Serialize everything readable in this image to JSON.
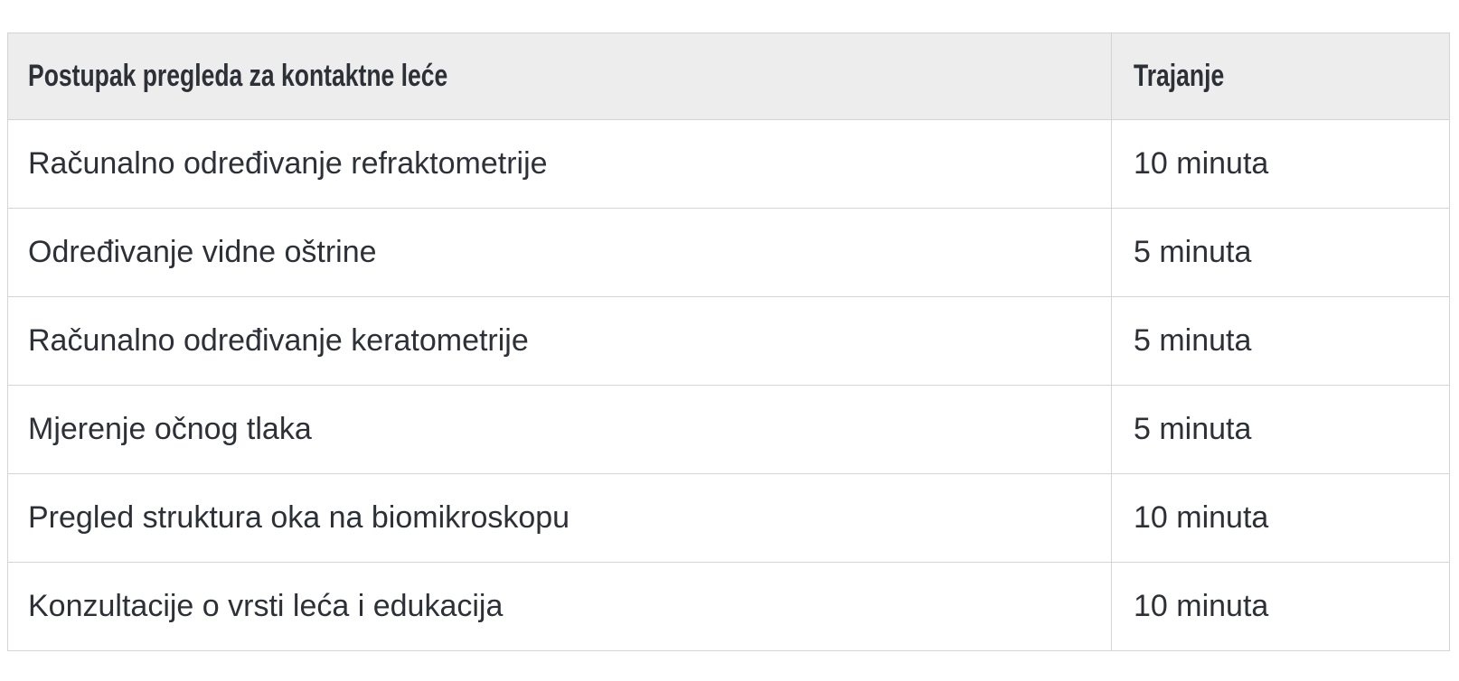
{
  "table": {
    "header": {
      "procedure": "Postupak pregleda za kontaktne leće",
      "duration": "Trajanje"
    },
    "rows": [
      {
        "procedure": "Računalno određivanje refraktometrije",
        "duration": "10 minuta"
      },
      {
        "procedure": "Određivanje vidne oštrine",
        "duration": "5 minuta"
      },
      {
        "procedure": "Računalno određivanje keratometrije",
        "duration": "5 minuta"
      },
      {
        "procedure": "Mjerenje očnog tlaka",
        "duration": "5 minuta"
      },
      {
        "procedure": "Pregled struktura oka na biomikroskopu",
        "duration": "10 minuta"
      },
      {
        "procedure": "Konzultacije o vrsti leća i edukacija",
        "duration": "10 minuta"
      }
    ],
    "colors": {
      "header_bg": "#ededed",
      "row_bg": "#ffffff",
      "border": "#d4d4d4",
      "text": "#2d3037"
    }
  }
}
